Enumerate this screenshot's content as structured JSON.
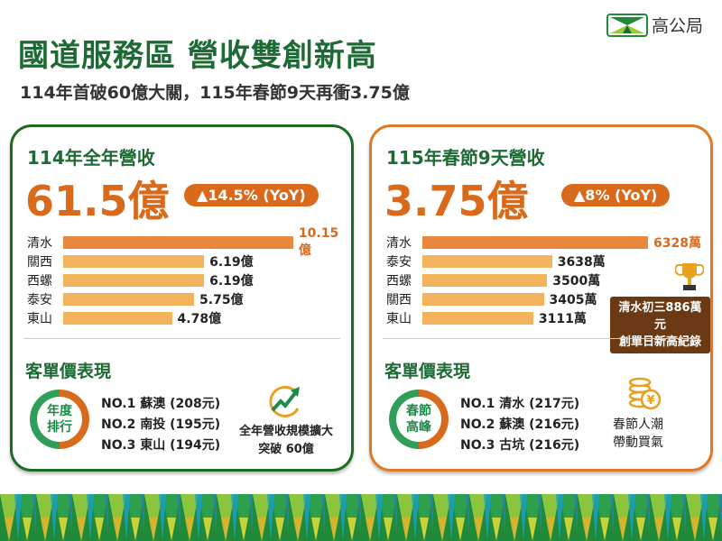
{
  "header": {
    "title": "國道服務區 營收雙創新高",
    "subtitle": "114年首破60億大關，115年春節9天再衝3.75億",
    "logo_text": "高公局"
  },
  "colors": {
    "green": "#1e6a35",
    "orange": "#d96a1c",
    "bar_top": "#e9873d",
    "bar": "#f2b35c"
  },
  "left": {
    "title": "114年全年營收",
    "total": "61.5億",
    "yoy": "▲14.5% (YoY)",
    "section": "客單價表現",
    "donut": [
      "年度",
      "排行"
    ],
    "ranks": [
      "NO.1 蘇澳 (208元)",
      "NO.2 南投 (195元)",
      "NO.3 東山 (194元)"
    ],
    "icon": "growth-chart-icon",
    "note": [
      "全年營收規模擴大",
      "突破 60億"
    ]
  },
  "right": {
    "title": "115年春節9天營收",
    "total": "3.75億",
    "yoy": "▲8% (YoY)",
    "section": "客單價表現",
    "donut": [
      "春節",
      "高峰"
    ],
    "ranks": [
      "NO.1 清水 (217元)",
      "NO.2 蘇澳 (216元)",
      "NO.3 古坑 (216元)"
    ],
    "icon": "coins-icon",
    "note": [
      "春節人潮",
      "帶動買氣"
    ],
    "record": [
      "清水初三886萬元",
      "創單日新高紀錄"
    ],
    "trophy_icon": "trophy-icon"
  },
  "chart_data": [
    {
      "type": "bar",
      "orientation": "horizontal",
      "categories": [
        "清水",
        "關西",
        "西螺",
        "泰安",
        "東山"
      ],
      "values": [
        10.15,
        6.19,
        6.19,
        5.75,
        4.78
      ],
      "labels": [
        "10.15億",
        "6.19億",
        "6.19億",
        "5.75億",
        "4.78億"
      ],
      "unit": "億"
    },
    {
      "type": "bar",
      "orientation": "horizontal",
      "categories": [
        "清水",
        "泰安",
        "西螺",
        "關西",
        "東山"
      ],
      "values": [
        6328,
        3638,
        3500,
        3405,
        3111
      ],
      "labels": [
        "6328萬",
        "3638萬",
        "3500萬",
        "3405萬",
        "3111萬"
      ],
      "unit": "萬"
    }
  ]
}
